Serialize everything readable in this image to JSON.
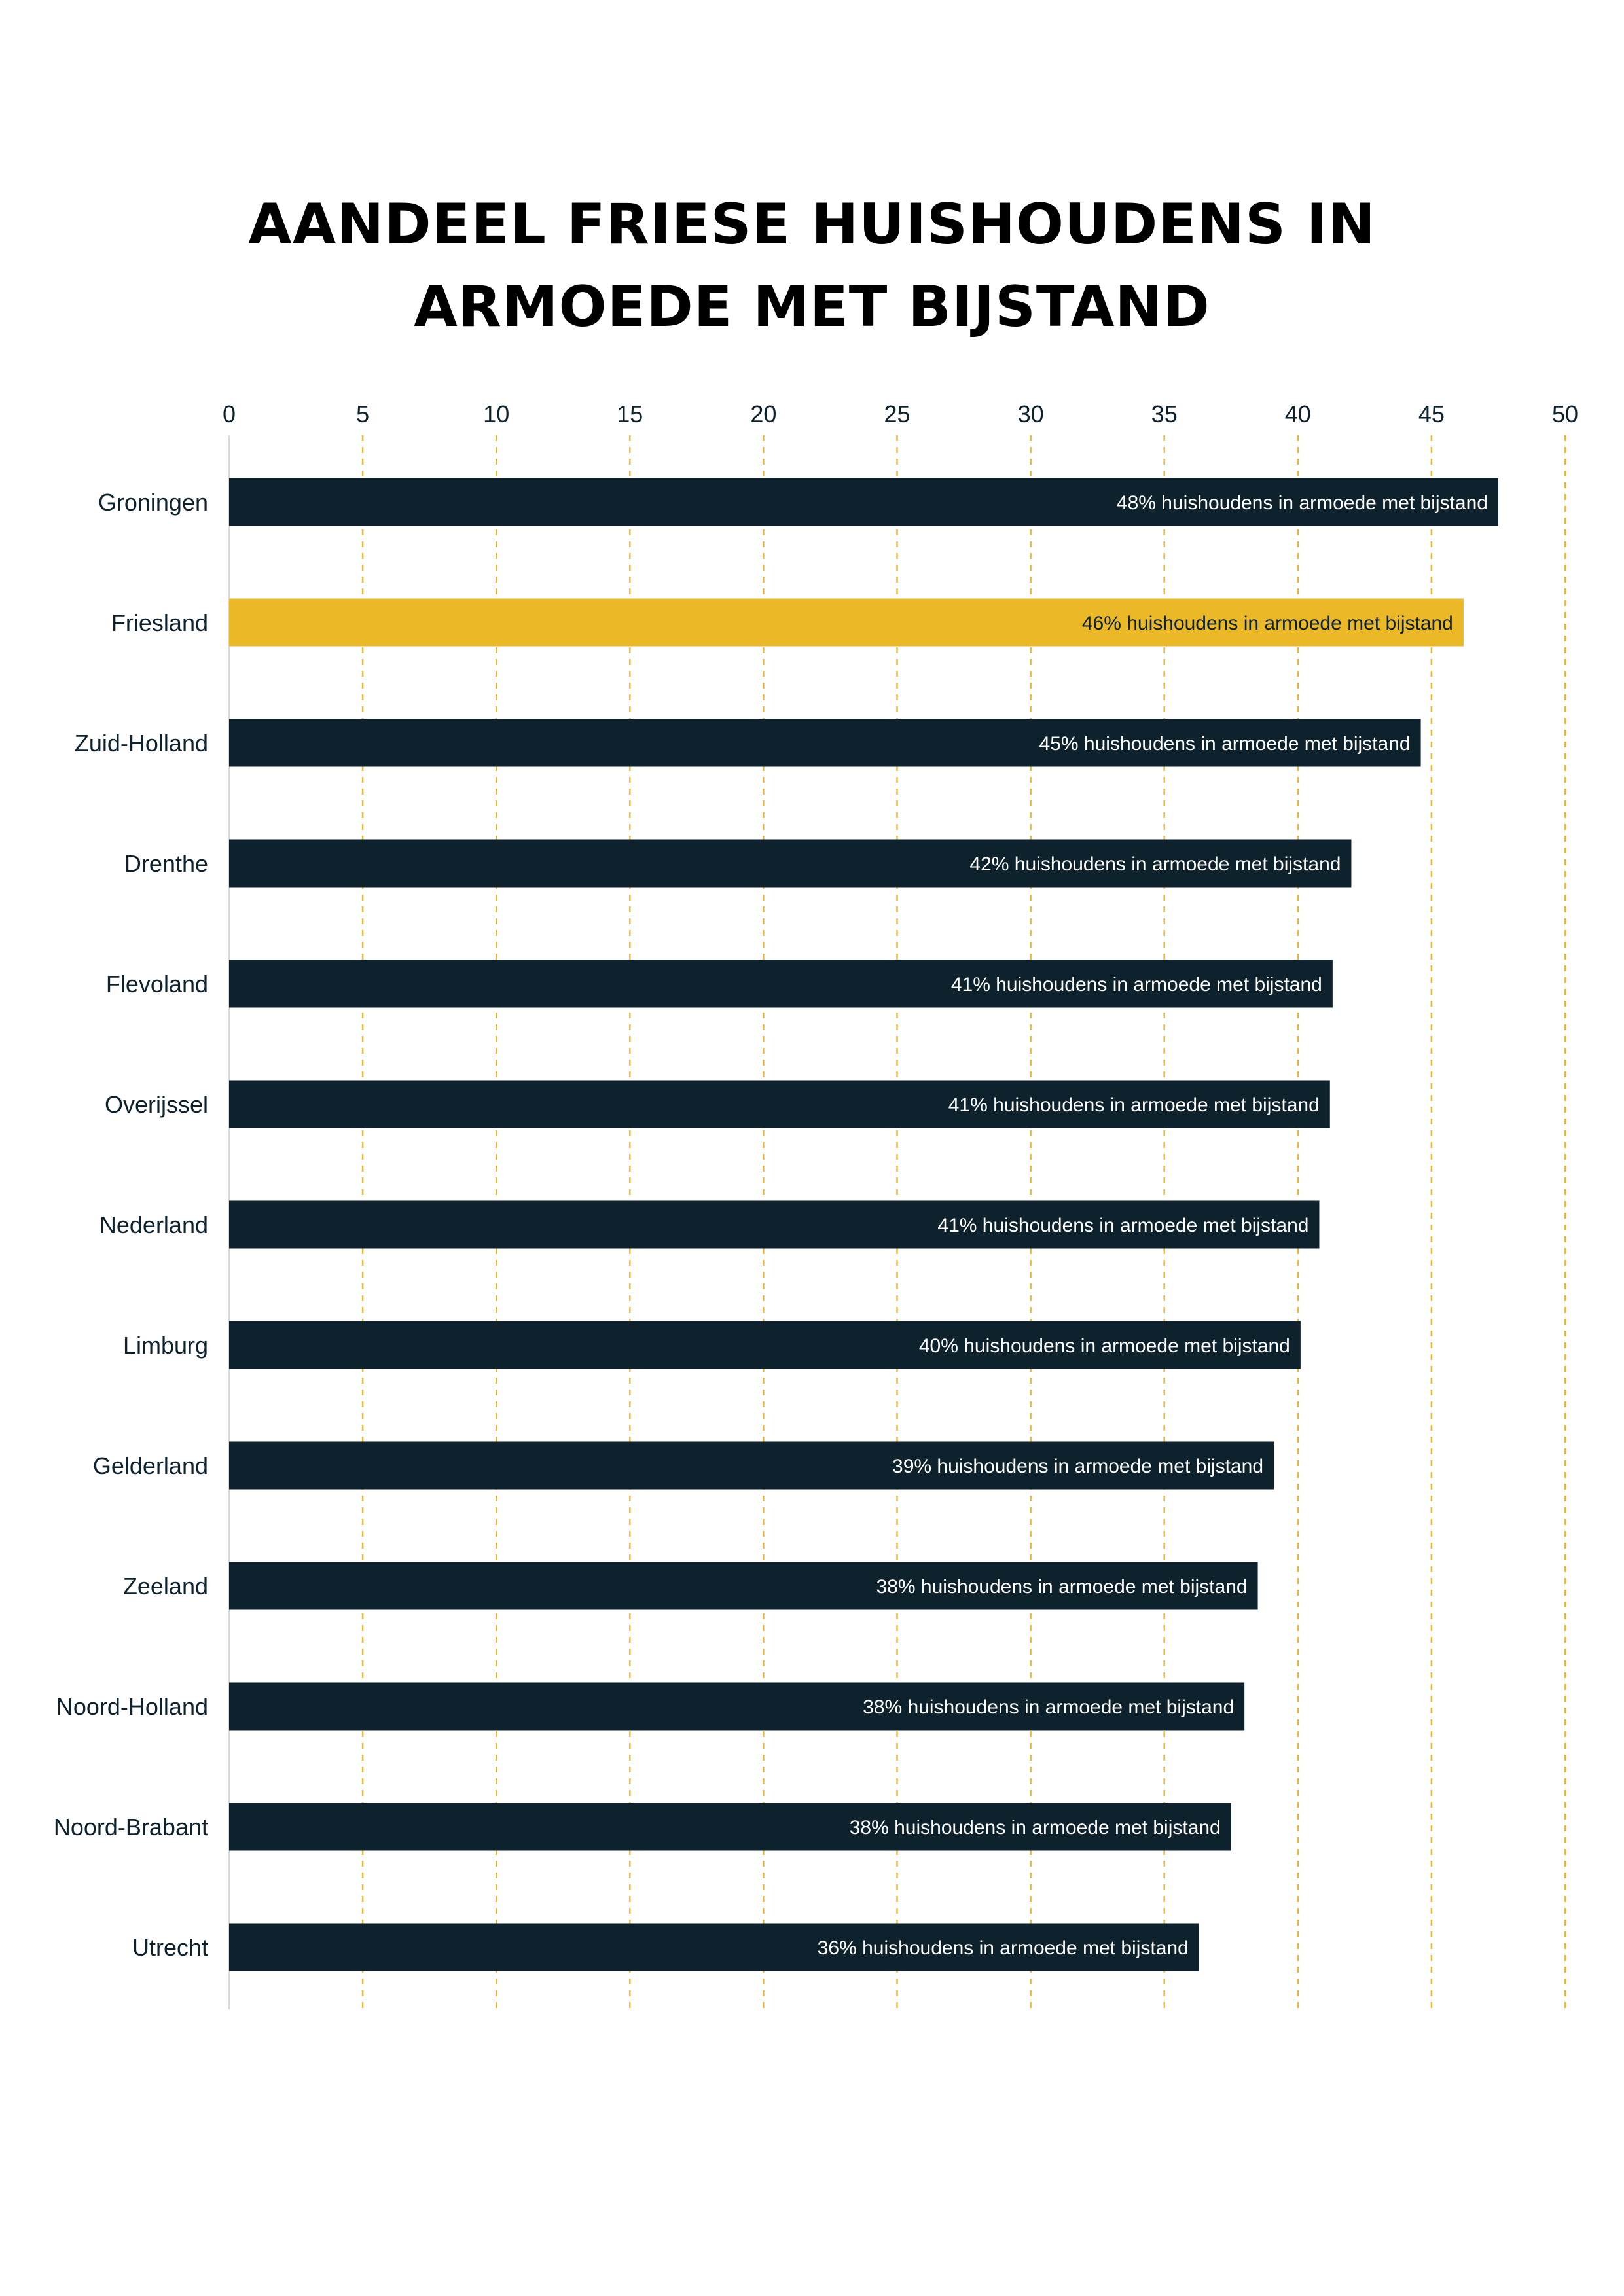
{
  "chart_data": {
    "type": "bar",
    "orientation": "horizontal",
    "title_lines": [
      "AANDEEL FRIESE HUISHOUDENS IN",
      "ARMOEDE MET BIJSTAND"
    ],
    "categories": [
      "Groningen",
      "Friesland",
      "Zuid-Holland",
      "Drenthe",
      "Flevoland",
      "Overijssel",
      "Nederland",
      "Limburg",
      "Gelderland",
      "Zeeland",
      "Noord-Holland",
      "Noord-Brabant",
      "Utrecht"
    ],
    "values": [
      47.5,
      46.2,
      44.6,
      42.0,
      41.3,
      41.2,
      40.8,
      40.1,
      39.1,
      38.5,
      38.0,
      37.5,
      36.3
    ],
    "data_labels": [
      "48% huishoudens in armoede met bijstand",
      "46% huishoudens in armoede met bijstand",
      "45% huishoudens in armoede met bijstand",
      "42% huishoudens in armoede met bijstand",
      "41% huishoudens in armoede met bijstand",
      "41% huishoudens in armoede met bijstand",
      "41% huishoudens in armoede met bijstand",
      "40% huishoudens in armoede met bijstand",
      "39% huishoudens in armoede met bijstand",
      "38% huishoudens in armoede met bijstand",
      "38% huishoudens in armoede met bijstand",
      "38% huishoudens in armoede met bijstand",
      "36% huishoudens in armoede met bijstand"
    ],
    "highlight": "Friesland",
    "xlim": [
      0,
      50
    ],
    "xticks": [
      0,
      5,
      10,
      15,
      20,
      25,
      30,
      35,
      40,
      45,
      50
    ],
    "xaxis_position": "top",
    "grid": true,
    "colors": {
      "bar": "#0e222d",
      "highlight": "#ebb928",
      "grid": "#ebb928",
      "label_on_dark": "#ffffff",
      "label_on_highlight": "#0e222d"
    }
  }
}
